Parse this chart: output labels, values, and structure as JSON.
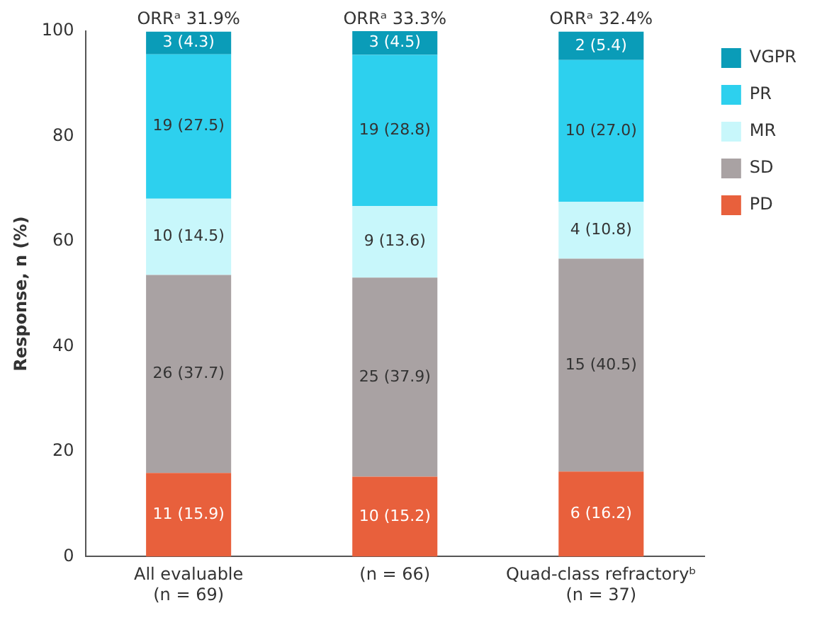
{
  "chart_data": {
    "type": "bar",
    "stacked": true,
    "ylabel": "Response, n (%)",
    "categories": [
      "All evaluable\n(n = 69)",
      "(n = 66)",
      "Quad-class refractoryᵇ\n(n = 37)"
    ],
    "ylim": [
      0,
      100
    ],
    "yticks": [
      0,
      20,
      40,
      60,
      80,
      100
    ],
    "grid": false,
    "legend": "right",
    "series": [
      {
        "name": "PD",
        "color": "#e8603c",
        "values": [
          15.9,
          15.2,
          16.2
        ],
        "value_labels": [
          "11 (15.9)",
          "10 (15.2)",
          "6 (16.2)"
        ]
      },
      {
        "name": "SD",
        "color": "#a9a2a3",
        "values": [
          37.7,
          37.9,
          40.5
        ],
        "value_labels": [
          "26 (37.7)",
          "25 (37.9)",
          "15 (40.5)"
        ]
      },
      {
        "name": "MR",
        "color": "#c8f7fb",
        "values": [
          14.5,
          13.6,
          10.8
        ],
        "value_labels": [
          "10 (14.5)",
          "9 (13.6)",
          "4 (10.8)"
        ]
      },
      {
        "name": "PR",
        "color": "#2dd0ee",
        "values": [
          27.5,
          28.8,
          27.0
        ],
        "value_labels": [
          "19 (27.5)",
          "19 (28.8)",
          "10 (27.0)"
        ]
      },
      {
        "name": "VGPR",
        "color": "#0a9cb8",
        "values": [
          4.3,
          4.5,
          5.4
        ],
        "value_labels": [
          "3 (4.3)",
          "3 (4.5)",
          "2 (5.4)"
        ]
      }
    ],
    "annotations": [
      {
        "text": "ORRᵃ 31.9%",
        "x": "All evaluable\n(n = 69)",
        "y": 100
      },
      {
        "text": "ORRᵃ 33.3%",
        "x": "(n = 66)",
        "y": 100
      },
      {
        "text": "ORRᵃ 32.4%",
        "x": "Quad-class refractoryᵇ\n(n = 37)",
        "y": 100
      }
    ]
  }
}
